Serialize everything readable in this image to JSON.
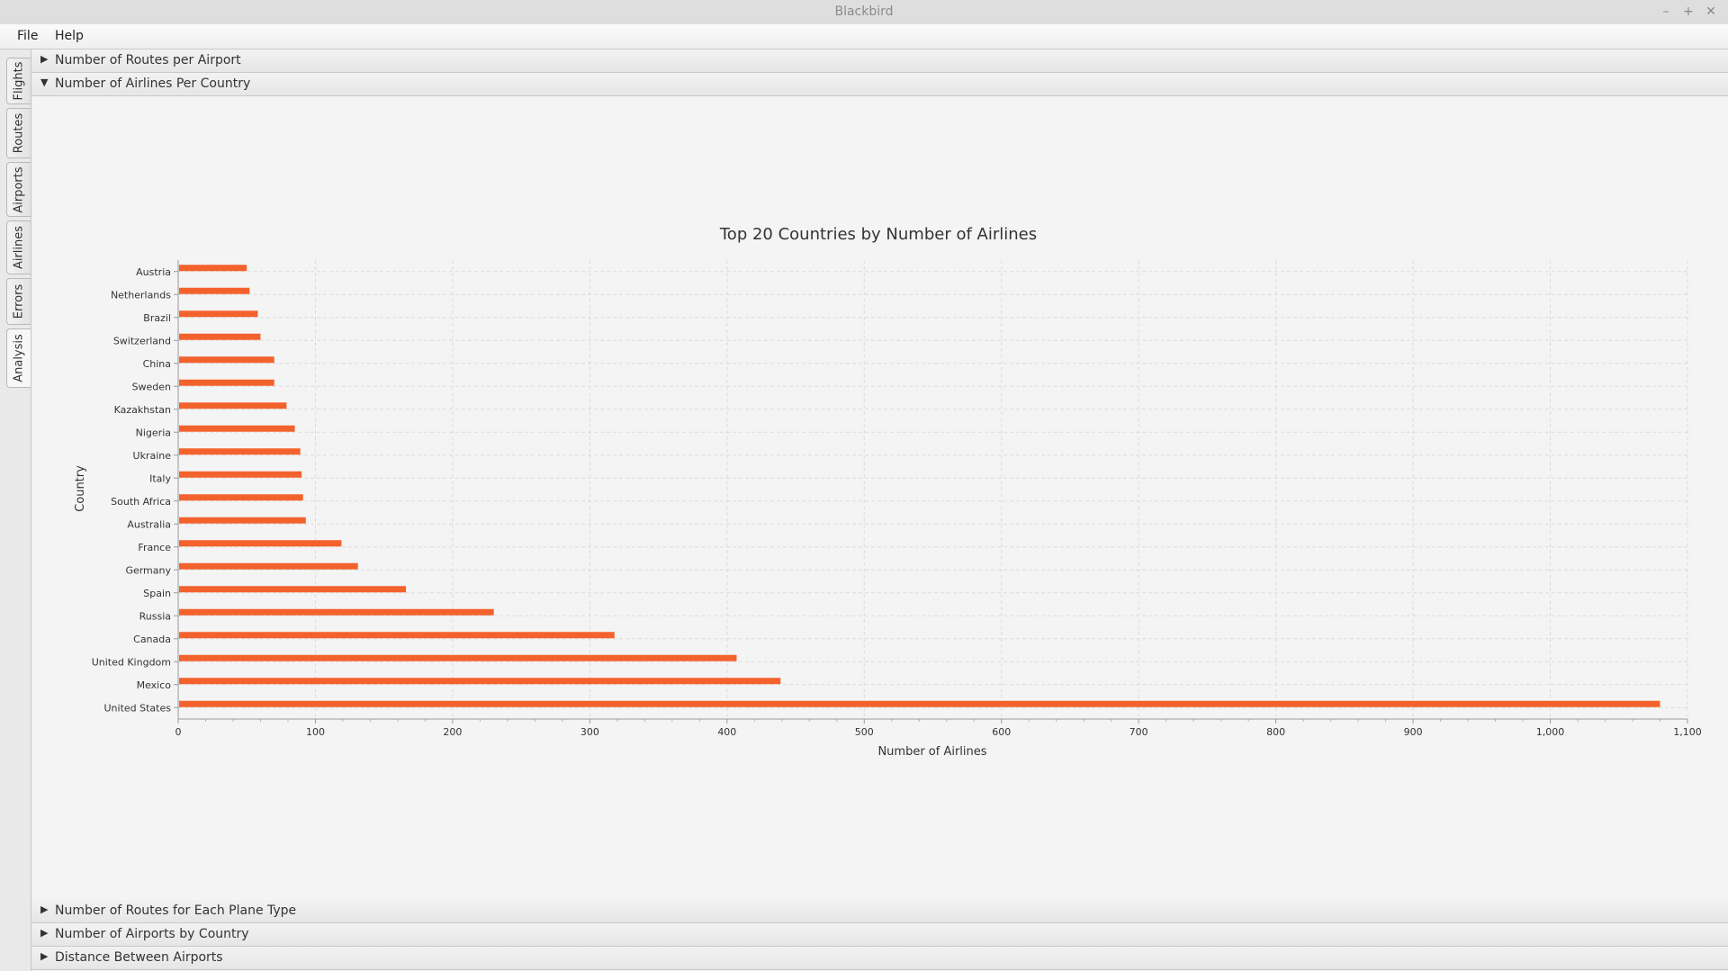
{
  "window": {
    "title": "Blackbird",
    "controls": [
      "–",
      "+",
      "✕"
    ]
  },
  "menu": {
    "file": "File",
    "help": "Help"
  },
  "side_tabs": [
    "Flights",
    "Routes",
    "Airports",
    "Airlines",
    "Errors",
    "Analysis"
  ],
  "panes": {
    "top": [
      {
        "label": "Number of Routes per Airport",
        "expanded": false
      },
      {
        "label": "Number of Airlines Per Country",
        "expanded": true
      }
    ],
    "bottom": [
      {
        "label": "Number of Routes for Each Plane Type",
        "expanded": false
      },
      {
        "label": "Number of Airports by Country",
        "expanded": false
      },
      {
        "label": "Distance Between Airports",
        "expanded": false
      }
    ]
  },
  "icons": {
    "collapsed": "▶",
    "expanded": "▼"
  },
  "colors": {
    "bar": "#f3622d",
    "accent": "#f3622d"
  },
  "chart_data": {
    "type": "bar",
    "orientation": "horizontal",
    "title": "Top 20 Countries by Number of Airlines",
    "xlabel": "Number of Airlines",
    "ylabel": "Country",
    "xlim": [
      0,
      1100
    ],
    "xticks": [
      0,
      100,
      200,
      300,
      400,
      500,
      600,
      700,
      800,
      900,
      1000,
      1100
    ],
    "xtick_labels": [
      "0",
      "100",
      "200",
      "300",
      "400",
      "500",
      "600",
      "700",
      "800",
      "900",
      "1,000",
      "1,100"
    ],
    "grid": true,
    "categories": [
      "Austria",
      "Netherlands",
      "Brazil",
      "Switzerland",
      "China",
      "Sweden",
      "Kazakhstan",
      "Nigeria",
      "Ukraine",
      "Italy",
      "South Africa",
      "Australia",
      "France",
      "Germany",
      "Spain",
      "Russia",
      "Canada",
      "United Kingdom",
      "Mexico",
      "United States"
    ],
    "values": [
      50,
      52,
      58,
      60,
      70,
      70,
      79,
      85,
      89,
      90,
      91,
      93,
      119,
      131,
      166,
      230,
      318,
      407,
      439,
      1080
    ]
  }
}
